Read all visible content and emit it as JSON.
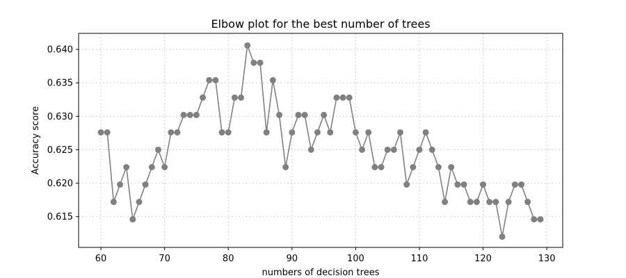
{
  "chart_data": {
    "type": "line",
    "title": "Elbow plot for the best number of trees",
    "xlabel": "numbers of decision trees",
    "ylabel": "Accuracy score",
    "xlim": [
      56.5,
      132.5
    ],
    "ylim": [
      0.6104,
      0.6424
    ],
    "x_ticks": [
      60,
      70,
      80,
      90,
      100,
      110,
      120,
      130
    ],
    "y_ticks": [
      0.615,
      0.62,
      0.625,
      0.63,
      0.635,
      0.64
    ],
    "y_tick_labels": [
      "0.615",
      "0.620",
      "0.625",
      "0.630",
      "0.635",
      "0.640"
    ],
    "grid": true,
    "series": [
      {
        "color": "#808080",
        "marker": "circle",
        "x": [
          60,
          61,
          62,
          63,
          64,
          65,
          66,
          67,
          68,
          69,
          70,
          71,
          72,
          73,
          74,
          75,
          76,
          77,
          78,
          79,
          80,
          81,
          82,
          83,
          84,
          85,
          86,
          87,
          88,
          89,
          90,
          91,
          92,
          93,
          94,
          95,
          96,
          97,
          98,
          99,
          100,
          101,
          102,
          103,
          104,
          105,
          106,
          107,
          108,
          109,
          110,
          111,
          112,
          113,
          114,
          115,
          116,
          117,
          118,
          119,
          120,
          121,
          122,
          123,
          124,
          125,
          126,
          127,
          128,
          129
        ],
        "values": [
          0.6276,
          0.6276,
          0.6172,
          0.6198,
          0.6224,
          0.6146,
          0.6172,
          0.6198,
          0.6224,
          0.625,
          0.6224,
          0.6276,
          0.6276,
          0.6302,
          0.6302,
          0.6302,
          0.6328,
          0.6354,
          0.6354,
          0.6276,
          0.6276,
          0.6328,
          0.6328,
          0.6406,
          0.638,
          0.638,
          0.6276,
          0.6354,
          0.6302,
          0.6224,
          0.6276,
          0.6302,
          0.6302,
          0.625,
          0.6276,
          0.6302,
          0.6276,
          0.6328,
          0.6328,
          0.6328,
          0.6276,
          0.625,
          0.6276,
          0.6224,
          0.6224,
          0.625,
          0.625,
          0.6276,
          0.6198,
          0.6224,
          0.625,
          0.6276,
          0.625,
          0.6224,
          0.6172,
          0.6224,
          0.6198,
          0.6198,
          0.6172,
          0.6172,
          0.6198,
          0.6172,
          0.6172,
          0.612,
          0.6172,
          0.6198,
          0.6198,
          0.6172,
          0.6146,
          0.6146
        ]
      }
    ]
  }
}
